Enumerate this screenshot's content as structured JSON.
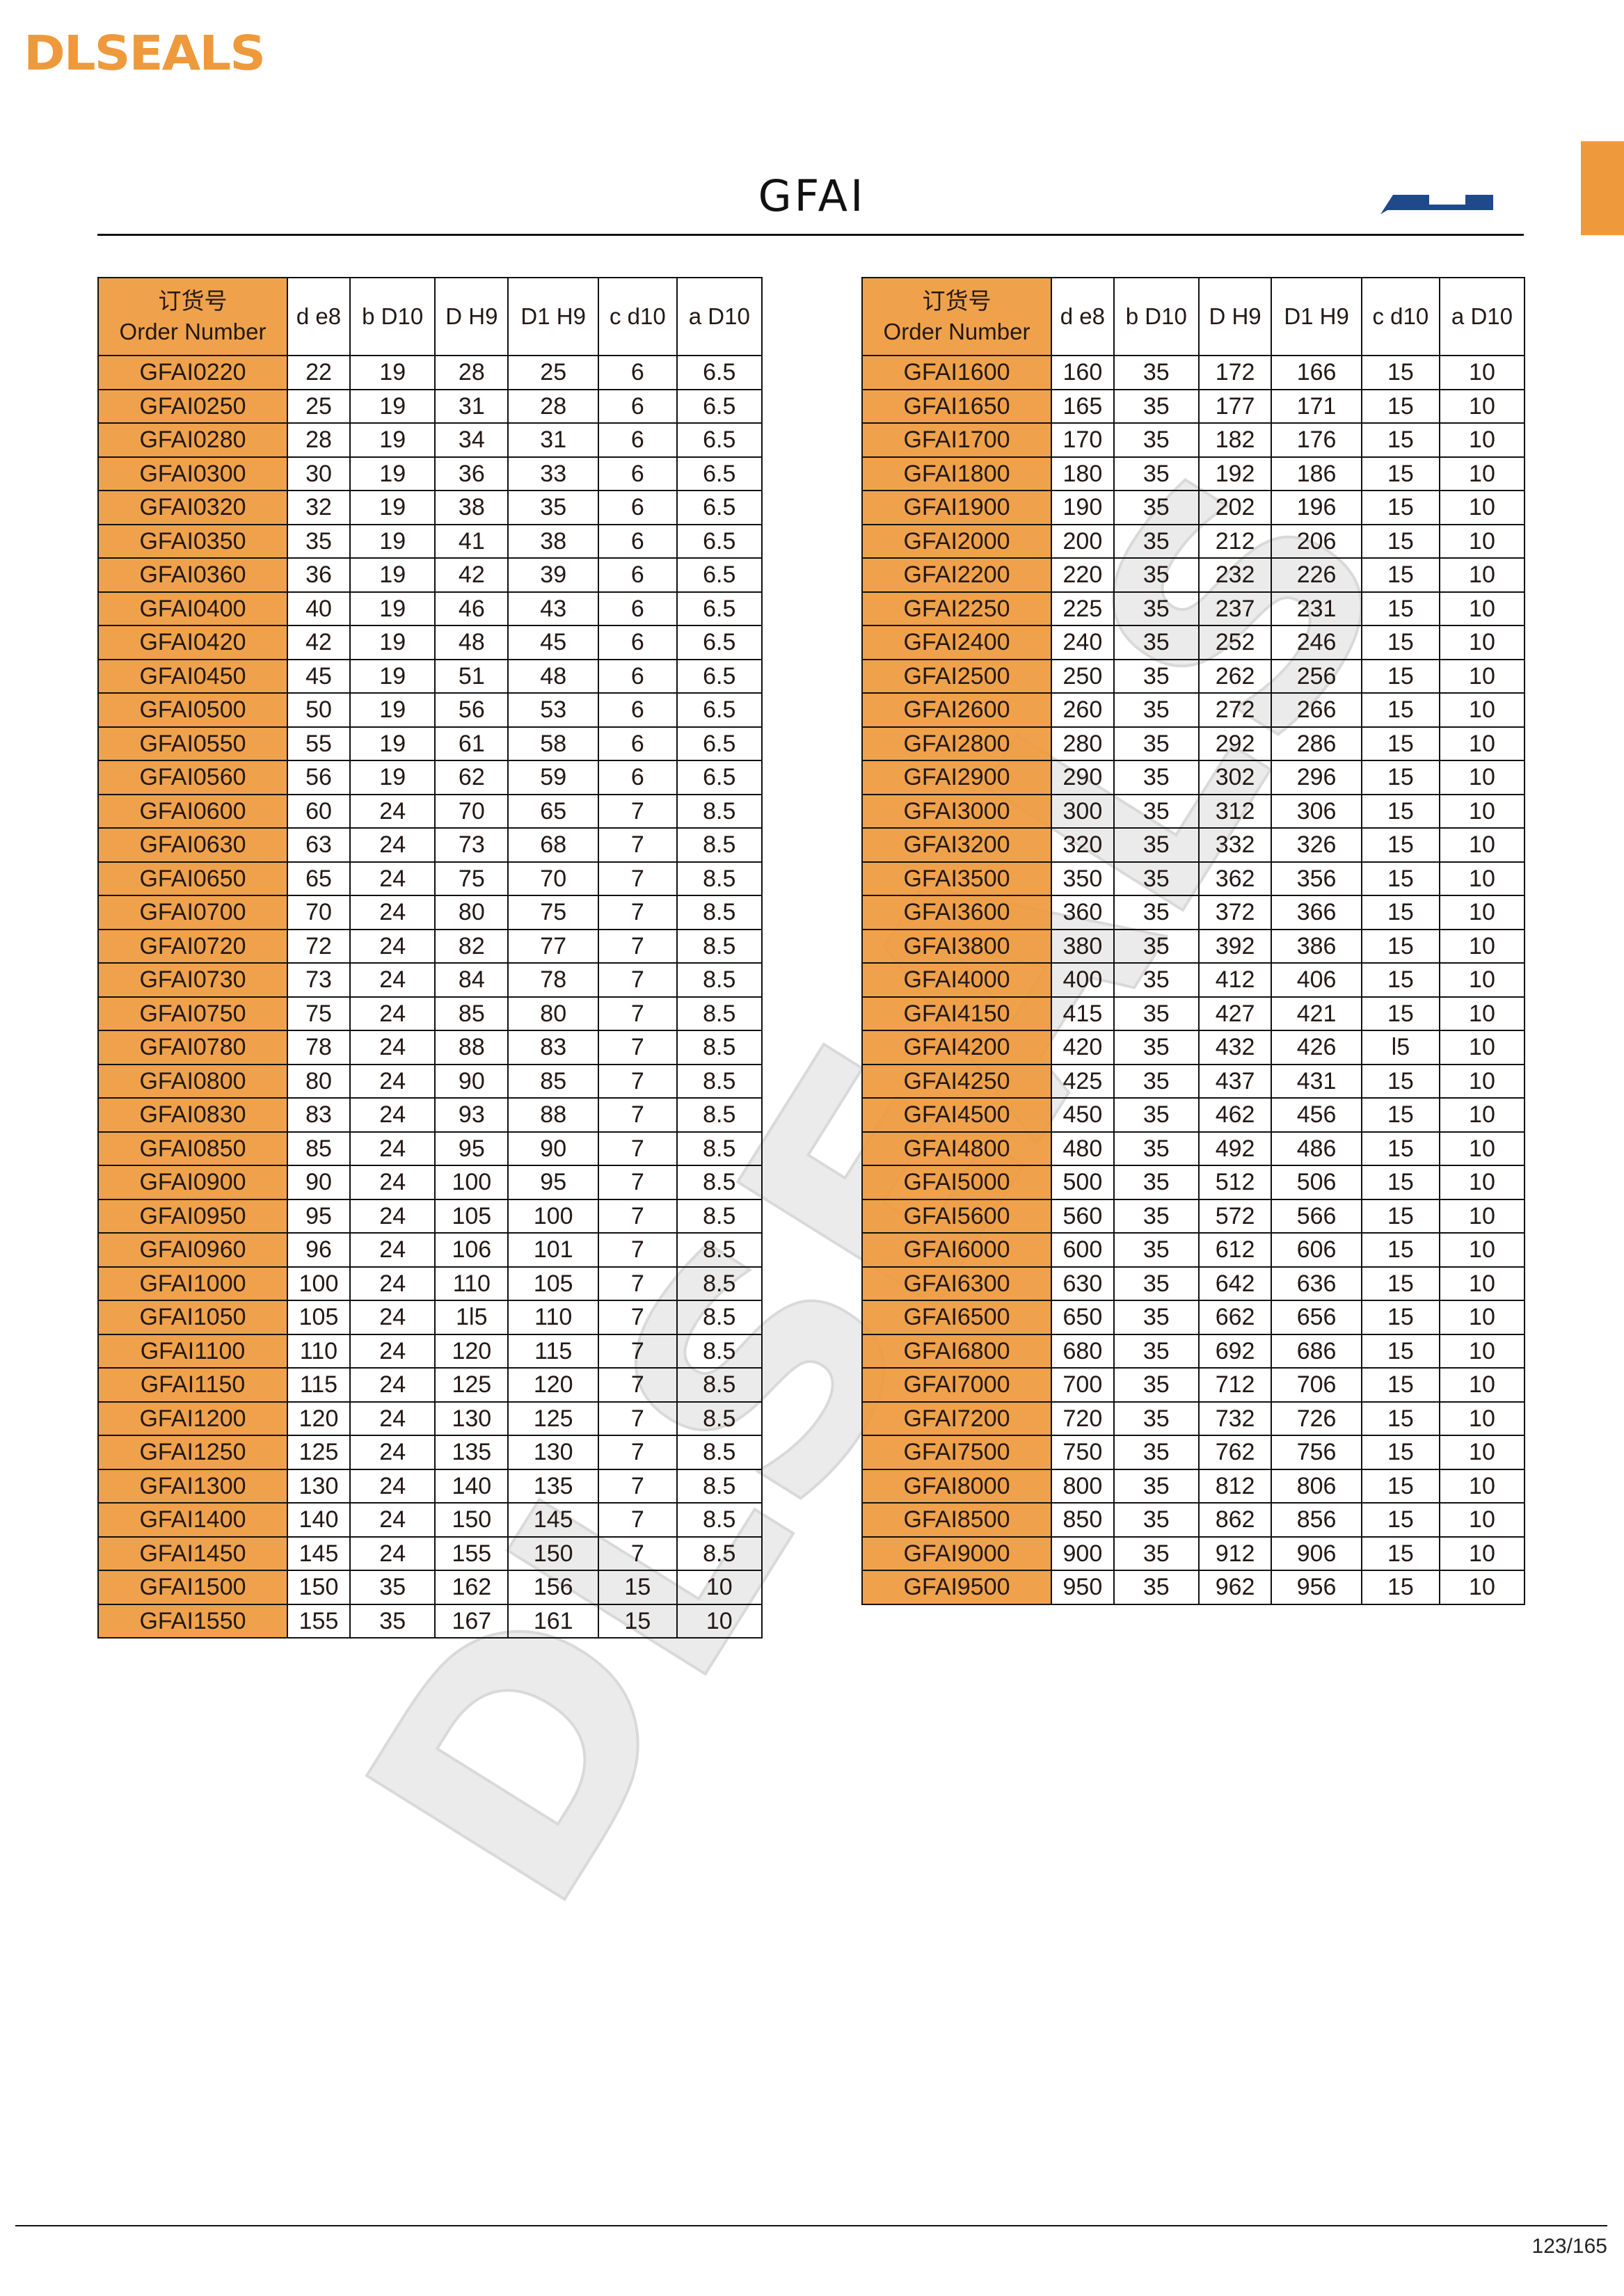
{
  "brand": {
    "logo_text": "DLSEALS",
    "accent_color": "#ee9a3c",
    "profile_color": "#1e4a8c"
  },
  "page": {
    "title": "GFAI",
    "page_number": "123/165",
    "watermark_text": "DLSEALS"
  },
  "columns": {
    "order_cn": "订货号",
    "order_en": "Order Number",
    "d": "d e8",
    "b": "b D10",
    "D": "D H9",
    "D1": "D1 H9",
    "c": "c d10",
    "a": "a D10"
  },
  "left_table": [
    [
      "GFAI0220",
      "22",
      "19",
      "28",
      "25",
      "6",
      "6.5"
    ],
    [
      "GFAI0250",
      "25",
      "19",
      "31",
      "28",
      "6",
      "6.5"
    ],
    [
      "GFAI0280",
      "28",
      "19",
      "34",
      "31",
      "6",
      "6.5"
    ],
    [
      "GFAI0300",
      "30",
      "19",
      "36",
      "33",
      "6",
      "6.5"
    ],
    [
      "GFAI0320",
      "32",
      "19",
      "38",
      "35",
      "6",
      "6.5"
    ],
    [
      "GFAI0350",
      "35",
      "19",
      "41",
      "38",
      "6",
      "6.5"
    ],
    [
      "GFAI0360",
      "36",
      "19",
      "42",
      "39",
      "6",
      "6.5"
    ],
    [
      "GFAI0400",
      "40",
      "19",
      "46",
      "43",
      "6",
      "6.5"
    ],
    [
      "GFAI0420",
      "42",
      "19",
      "48",
      "45",
      "6",
      "6.5"
    ],
    [
      "GFAI0450",
      "45",
      "19",
      "51",
      "48",
      "6",
      "6.5"
    ],
    [
      "GFAI0500",
      "50",
      "19",
      "56",
      "53",
      "6",
      "6.5"
    ],
    [
      "GFAI0550",
      "55",
      "19",
      "61",
      "58",
      "6",
      "6.5"
    ],
    [
      "GFAI0560",
      "56",
      "19",
      "62",
      "59",
      "6",
      "6.5"
    ],
    [
      "GFAI0600",
      "60",
      "24",
      "70",
      "65",
      "7",
      "8.5"
    ],
    [
      "GFAI0630",
      "63",
      "24",
      "73",
      "68",
      "7",
      "8.5"
    ],
    [
      "GFAI0650",
      "65",
      "24",
      "75",
      "70",
      "7",
      "8.5"
    ],
    [
      "GFAI0700",
      "70",
      "24",
      "80",
      "75",
      "7",
      "8.5"
    ],
    [
      "GFAI0720",
      "72",
      "24",
      "82",
      "77",
      "7",
      "8.5"
    ],
    [
      "GFAI0730",
      "73",
      "24",
      "84",
      "78",
      "7",
      "8.5"
    ],
    [
      "GFAI0750",
      "75",
      "24",
      "85",
      "80",
      "7",
      "8.5"
    ],
    [
      "GFAI0780",
      "78",
      "24",
      "88",
      "83",
      "7",
      "8.5"
    ],
    [
      "GFAI0800",
      "80",
      "24",
      "90",
      "85",
      "7",
      "8.5"
    ],
    [
      "GFAI0830",
      "83",
      "24",
      "93",
      "88",
      "7",
      "8.5"
    ],
    [
      "GFAI0850",
      "85",
      "24",
      "95",
      "90",
      "7",
      "8.5"
    ],
    [
      "GFAI0900",
      "90",
      "24",
      "100",
      "95",
      "7",
      "8.5"
    ],
    [
      "GFAI0950",
      "95",
      "24",
      "105",
      "100",
      "7",
      "8.5"
    ],
    [
      "GFAI0960",
      "96",
      "24",
      "106",
      "101",
      "7",
      "8.5"
    ],
    [
      "GFAI1000",
      "100",
      "24",
      "110",
      "105",
      "7",
      "8.5"
    ],
    [
      "GFAI1050",
      "105",
      "24",
      "1l5",
      "110",
      "7",
      "8.5"
    ],
    [
      "GFAI1100",
      "110",
      "24",
      "120",
      "115",
      "7",
      "8.5"
    ],
    [
      "GFAI1150",
      "115",
      "24",
      "125",
      "120",
      "7",
      "8.5"
    ],
    [
      "GFAI1200",
      "120",
      "24",
      "130",
      "125",
      "7",
      "8.5"
    ],
    [
      "GFAI1250",
      "125",
      "24",
      "135",
      "130",
      "7",
      "8.5"
    ],
    [
      "GFAI1300",
      "130",
      "24",
      "140",
      "135",
      "7",
      "8.5"
    ],
    [
      "GFAI1400",
      "140",
      "24",
      "150",
      "145",
      "7",
      "8.5"
    ],
    [
      "GFAI1450",
      "145",
      "24",
      "155",
      "150",
      "7",
      "8.5"
    ],
    [
      "GFAI1500",
      "150",
      "35",
      "162",
      "156",
      "15",
      "10"
    ],
    [
      "GFAI1550",
      "155",
      "35",
      "167",
      "161",
      "15",
      "10"
    ]
  ],
  "right_table": [
    [
      "GFAI1600",
      "160",
      "35",
      "172",
      "166",
      "15",
      "10"
    ],
    [
      "GFAI1650",
      "165",
      "35",
      "177",
      "171",
      "15",
      "10"
    ],
    [
      "GFAI1700",
      "170",
      "35",
      "182",
      "176",
      "15",
      "10"
    ],
    [
      "GFAI1800",
      "180",
      "35",
      "192",
      "186",
      "15",
      "10"
    ],
    [
      "GFAI1900",
      "190",
      "35",
      "202",
      "196",
      "15",
      "10"
    ],
    [
      "GFAI2000",
      "200",
      "35",
      "212",
      "206",
      "15",
      "10"
    ],
    [
      "GFAI2200",
      "220",
      "35",
      "232",
      "226",
      "15",
      "10"
    ],
    [
      "GFAI2250",
      "225",
      "35",
      "237",
      "231",
      "15",
      "10"
    ],
    [
      "GFAI2400",
      "240",
      "35",
      "252",
      "246",
      "15",
      "10"
    ],
    [
      "GFAI2500",
      "250",
      "35",
      "262",
      "256",
      "15",
      "10"
    ],
    [
      "GFAI2600",
      "260",
      "35",
      "272",
      "266",
      "15",
      "10"
    ],
    [
      "GFAI2800",
      "280",
      "35",
      "292",
      "286",
      "15",
      "10"
    ],
    [
      "GFAI2900",
      "290",
      "35",
      "302",
      "296",
      "15",
      "10"
    ],
    [
      "GFAI3000",
      "300",
      "35",
      "312",
      "306",
      "15",
      "10"
    ],
    [
      "GFAI3200",
      "320",
      "35",
      "332",
      "326",
      "15",
      "10"
    ],
    [
      "GFAI3500",
      "350",
      "35",
      "362",
      "356",
      "15",
      "10"
    ],
    [
      "GFAI3600",
      "360",
      "35",
      "372",
      "366",
      "15",
      "10"
    ],
    [
      "GFAI3800",
      "380",
      "35",
      "392",
      "386",
      "15",
      "10"
    ],
    [
      "GFAI4000",
      "400",
      "35",
      "412",
      "406",
      "15",
      "10"
    ],
    [
      "GFAI4150",
      "415",
      "35",
      "427",
      "421",
      "15",
      "10"
    ],
    [
      "GFAI4200",
      "420",
      "35",
      "432",
      "426",
      "l5",
      "10"
    ],
    [
      "GFAI4250",
      "425",
      "35",
      "437",
      "431",
      "15",
      "10"
    ],
    [
      "GFAI4500",
      "450",
      "35",
      "462",
      "456",
      "15",
      "10"
    ],
    [
      "GFAI4800",
      "480",
      "35",
      "492",
      "486",
      "15",
      "10"
    ],
    [
      "GFAI5000",
      "500",
      "35",
      "512",
      "506",
      "15",
      "10"
    ],
    [
      "GFAI5600",
      "560",
      "35",
      "572",
      "566",
      "15",
      "10"
    ],
    [
      "GFAI6000",
      "600",
      "35",
      "612",
      "606",
      "15",
      "10"
    ],
    [
      "GFAI6300",
      "630",
      "35",
      "642",
      "636",
      "15",
      "10"
    ],
    [
      "GFAI6500",
      "650",
      "35",
      "662",
      "656",
      "15",
      "10"
    ],
    [
      "GFAI6800",
      "680",
      "35",
      "692",
      "686",
      "15",
      "10"
    ],
    [
      "GFAI7000",
      "700",
      "35",
      "712",
      "706",
      "15",
      "10"
    ],
    [
      "GFAI7200",
      "720",
      "35",
      "732",
      "726",
      "15",
      "10"
    ],
    [
      "GFAI7500",
      "750",
      "35",
      "762",
      "756",
      "15",
      "10"
    ],
    [
      "GFAI8000",
      "800",
      "35",
      "812",
      "806",
      "15",
      "10"
    ],
    [
      "GFAI8500",
      "850",
      "35",
      "862",
      "856",
      "15",
      "10"
    ],
    [
      "GFAI9000",
      "900",
      "35",
      "912",
      "906",
      "15",
      "10"
    ],
    [
      "GFAI9500",
      "950",
      "35",
      "962",
      "956",
      "15",
      "10"
    ]
  ]
}
